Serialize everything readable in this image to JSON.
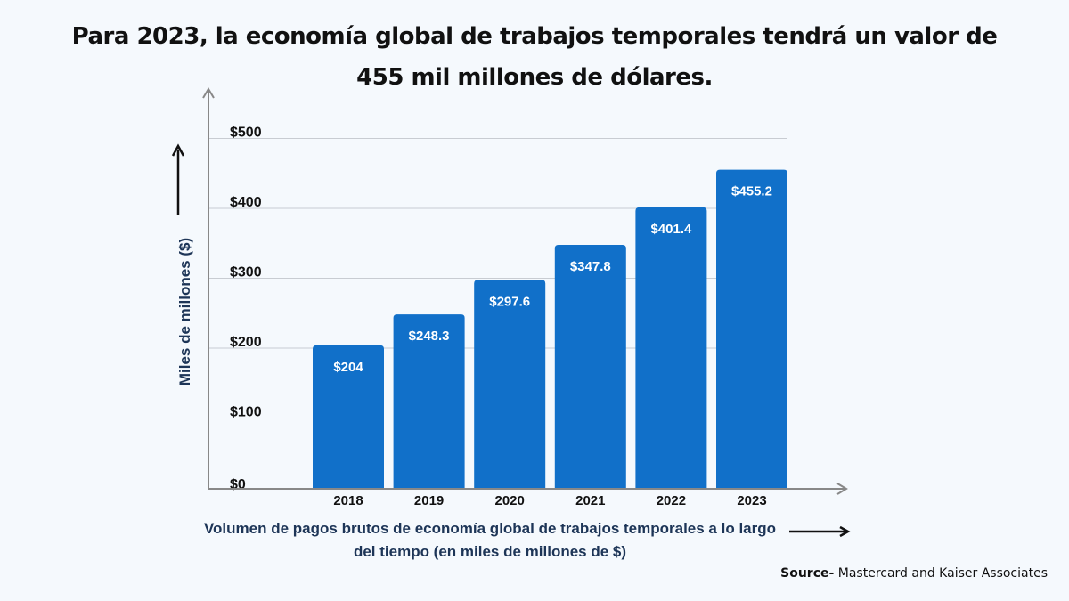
{
  "chart_data": {
    "type": "bar",
    "title": "Para 2023, la economía global de trabajos temporales tendrá un valor de 455 mil millones de dólares.",
    "categories": [
      "2018",
      "2019",
      "2020",
      "2021",
      "2022",
      "2023"
    ],
    "values": [
      204,
      248.3,
      297.6,
      347.8,
      401.4,
      455.2
    ],
    "data_labels": [
      "$204",
      "$248.3",
      "$297.6",
      "$347.8",
      "$401.4",
      "$455.2"
    ],
    "ylabel": "Miles de millones ($)",
    "xlabel": "Volumen de pagos brutos de economía global de trabajos temporales a lo largo del tiempo (en miles de millones de $)",
    "yticks": [
      0,
      100,
      200,
      300,
      400,
      500
    ],
    "ytick_labels": [
      "$0",
      "$100",
      "$200",
      "$300",
      "$400",
      "$500"
    ],
    "ylim": [
      0,
      500
    ],
    "grid": true,
    "bar_color": "#1170c9"
  },
  "source": {
    "label": "Source-",
    "text": "Mastercard and Kaiser Associates"
  }
}
